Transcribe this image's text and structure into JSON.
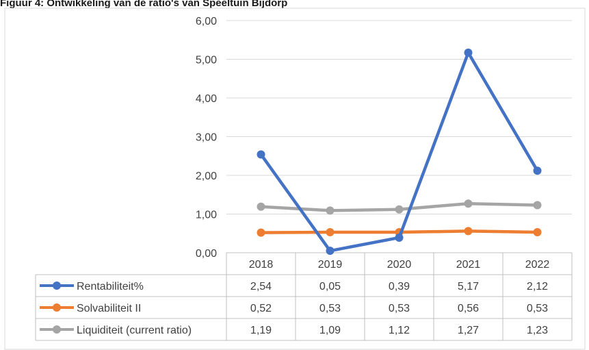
{
  "caption": "Figuur 4: Ontwikkeling van de ratio's van Speeltuin Bijdorp",
  "chart_data": {
    "type": "line",
    "title": "",
    "xlabel": "",
    "ylabel": "",
    "categories": [
      "2018",
      "2019",
      "2020",
      "2021",
      "2022"
    ],
    "ylim": [
      0,
      6
    ],
    "y_ticks": [
      "0,00",
      "1,00",
      "2,00",
      "3,00",
      "4,00",
      "5,00",
      "6,00"
    ],
    "grid": true,
    "legend": "data-table",
    "series": [
      {
        "name": "Rentabiliteit%",
        "color": "#4472c4",
        "values": [
          2.54,
          0.05,
          0.39,
          5.17,
          2.12
        ],
        "labels": [
          "2,54",
          "0,05",
          "0,39",
          "5,17",
          "2,12"
        ]
      },
      {
        "name": "Solvabiliteit II",
        "color": "#ed7d31",
        "values": [
          0.52,
          0.53,
          0.53,
          0.56,
          0.53
        ],
        "labels": [
          "0,52",
          "0,53",
          "0,53",
          "0,56",
          "0,53"
        ]
      },
      {
        "name": "Liquiditeit (current ratio)",
        "color": "#a5a5a5",
        "values": [
          1.19,
          1.09,
          1.12,
          1.27,
          1.23
        ],
        "labels": [
          "1,19",
          "1,09",
          "1,12",
          "1,27",
          "1,23"
        ]
      }
    ]
  }
}
